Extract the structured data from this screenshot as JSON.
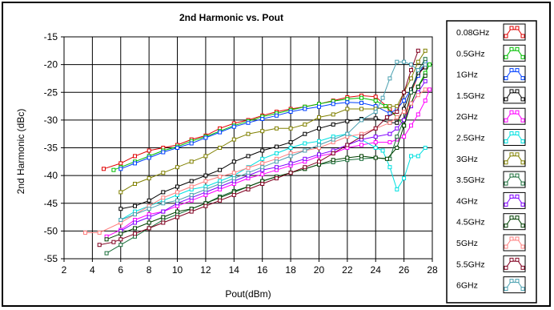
{
  "chart_data": {
    "type": "line",
    "title": "2nd Harmonic vs. Pout",
    "xlabel": "Pout(dBm)",
    "ylabel": "2nd Harmonic (dBc)",
    "xlim": [
      2,
      28
    ],
    "ylim": [
      -55,
      -15
    ],
    "xticks": [
      2,
      4,
      6,
      8,
      10,
      12,
      14,
      16,
      18,
      20,
      22,
      24,
      26,
      28
    ],
    "yticks": [
      -15,
      -20,
      -25,
      -30,
      -35,
      -40,
      -45,
      -50,
      -55
    ],
    "xtick_labels": [
      "2",
      "4",
      "6",
      "8",
      "10",
      "12",
      "14",
      "16",
      "18",
      "20",
      "22",
      "24",
      "26",
      "28"
    ],
    "ytick_labels": [
      "-15",
      "-20",
      "-25",
      "-30",
      "-35",
      "-40",
      "-45",
      "-50",
      "-55"
    ],
    "grid": true,
    "legend_position": "right",
    "marker": "open-square",
    "series": [
      {
        "name": "0.08GHz",
        "color": "#e00000",
        "x": [
          4.8,
          6,
          7,
          8,
          9,
          10,
          11,
          12,
          13,
          14,
          15,
          16,
          17,
          18,
          19,
          20,
          21,
          22,
          23,
          24,
          25,
          26,
          26.5,
          27,
          27.5
        ],
        "y": [
          -38.8,
          -37.8,
          -36.5,
          -35.5,
          -35,
          -34.5,
          -33.5,
          -32.8,
          -31.5,
          -30.6,
          -30,
          -29.2,
          -28.5,
          -28,
          -27.6,
          -27.1,
          -26.5,
          -25.9,
          -25.6,
          -25.8,
          -28,
          -31,
          -25,
          -22,
          -20
        ]
      },
      {
        "name": "0.5GHz",
        "color": "#00c000",
        "x": [
          5.5,
          6,
          7,
          8,
          9,
          10,
          11,
          12,
          13,
          14,
          15,
          16,
          17,
          18,
          19,
          20,
          21,
          22,
          23,
          24,
          24.7,
          25.5,
          26,
          26.5,
          27,
          27.5,
          27.8
        ],
        "y": [
          -39,
          -38.5,
          -37.5,
          -36.5,
          -35.5,
          -34.8,
          -33.8,
          -33,
          -32,
          -31,
          -30.2,
          -29.4,
          -28.8,
          -28.2,
          -27.6,
          -27.1,
          -26.6,
          -26.2,
          -26,
          -26.5,
          -27.5,
          -29.5,
          -31,
          -27,
          -24,
          -21.5,
          -20
        ]
      },
      {
        "name": "1GHz",
        "color": "#0040ff",
        "x": [
          6,
          7,
          8,
          9,
          10,
          11,
          12,
          13,
          14,
          15,
          16,
          17,
          18,
          19,
          20,
          21,
          22,
          23,
          24,
          25,
          25.5,
          26,
          26.5,
          27,
          27.5
        ],
        "y": [
          -38.8,
          -37.8,
          -36.8,
          -35.8,
          -35,
          -34.2,
          -33.2,
          -32.2,
          -31.2,
          -30.5,
          -29.8,
          -29.2,
          -28.5,
          -28,
          -27.6,
          -27.1,
          -26.8,
          -26.9,
          -27.5,
          -28.8,
          -28,
          -26.5,
          -24.5,
          -22,
          -19.5
        ]
      },
      {
        "name": "1.5GHz",
        "color": "#000000",
        "x": [
          6,
          7,
          8,
          9,
          10,
          11,
          12,
          13,
          14,
          15,
          16,
          17,
          18,
          19,
          20,
          21,
          22,
          23,
          24,
          25,
          25.5,
          26,
          26.5,
          27,
          27.5
        ],
        "y": [
          -46,
          -45.5,
          -44.5,
          -43,
          -42,
          -41,
          -40,
          -39,
          -37.5,
          -36.5,
          -35.5,
          -34.8,
          -34,
          -32.5,
          -31.5,
          -30.8,
          -30.2,
          -29.8,
          -29.7,
          -30.5,
          -30.5,
          -28,
          -24.5,
          -21.5,
          -20.5
        ]
      },
      {
        "name": "2GHz",
        "color": "#ff00ff",
        "x": [
          5,
          6,
          7,
          8,
          9,
          10,
          11,
          12,
          13,
          14,
          15,
          16,
          17,
          18,
          19,
          20,
          21,
          22,
          23,
          24,
          25,
          25.5,
          26,
          26.5,
          27,
          27.5,
          27.8
        ],
        "y": [
          -51,
          -49.8,
          -48,
          -47,
          -46.5,
          -45.5,
          -44.5,
          -43.5,
          -42.5,
          -41.5,
          -40.5,
          -39.8,
          -39,
          -38.2,
          -37.5,
          -36.5,
          -36,
          -35,
          -34.5,
          -34,
          -34,
          -33.5,
          -33,
          -31,
          -29,
          -26.5,
          -24.5
        ]
      },
      {
        "name": "2.5GHz",
        "color": "#00e0e0",
        "x": [
          6,
          7,
          8,
          9,
          10,
          11,
          12,
          13,
          14,
          15,
          16,
          17,
          18,
          19,
          20,
          21,
          22,
          23,
          24,
          24.5,
          25,
          25.5,
          26,
          26.5,
          27,
          27.5
        ],
        "y": [
          -48,
          -46.5,
          -45.5,
          -44.5,
          -43.5,
          -42.5,
          -42,
          -41,
          -40,
          -38.5,
          -37,
          -36,
          -35,
          -34.2,
          -33.8,
          -33,
          -32.5,
          -33.5,
          -35,
          -35.5,
          -38.5,
          -42.5,
          -40.5,
          -36.5,
          -36.5,
          -35
        ]
      },
      {
        "name": "3GHz",
        "color": "#808000",
        "x": [
          6,
          7,
          8,
          9,
          10,
          11,
          12,
          13,
          14,
          15,
          16,
          17,
          18,
          19,
          20,
          21,
          22,
          23,
          24,
          25,
          25.5,
          26,
          26.5,
          27,
          27.5
        ],
        "y": [
          -43,
          -41.5,
          -40.5,
          -39.5,
          -38.5,
          -37.5,
          -36.5,
          -35,
          -33.5,
          -32.5,
          -32,
          -31.5,
          -31.5,
          -30.8,
          -29.5,
          -29,
          -28,
          -28,
          -28,
          -27.5,
          -27.5,
          -25,
          -22.5,
          -19.5,
          -17.5
        ]
      },
      {
        "name": "3.5GHz",
        "color": "#1a6e3a",
        "x": [
          5,
          6,
          7,
          8,
          9,
          10,
          11,
          12,
          13,
          14,
          15,
          16,
          17,
          18,
          19,
          20,
          21,
          22,
          23,
          24,
          25,
          25.5,
          26,
          26.5,
          27,
          27.5
        ],
        "y": [
          -54,
          -52.5,
          -51,
          -49.5,
          -48,
          -47,
          -46,
          -45,
          -43.8,
          -42.8,
          -42,
          -41,
          -40.2,
          -39.5,
          -38.8,
          -38,
          -37.6,
          -37.2,
          -37,
          -36.8,
          -37,
          -33,
          -30,
          -25,
          -21,
          -19
        ]
      },
      {
        "name": "4GHz",
        "color": "#8000ff",
        "x": [
          6,
          7,
          8,
          9,
          10,
          11,
          12,
          13,
          14,
          15,
          16,
          17,
          18,
          19,
          20,
          21,
          22,
          23,
          24,
          25,
          25.5,
          26,
          26.5,
          27,
          27.5
        ],
        "y": [
          -50,
          -48.5,
          -47.5,
          -46.5,
          -45,
          -44,
          -43,
          -42,
          -41,
          -40,
          -39,
          -38.5,
          -37.8,
          -37,
          -36.2,
          -35.5,
          -34.5,
          -33.5,
          -33,
          -32.5,
          -31.5,
          -30,
          -27.5,
          -25,
          -23
        ]
      },
      {
        "name": "4.5GHz",
        "color": "#004000",
        "x": [
          5,
          6,
          7,
          8,
          9,
          10,
          11,
          12,
          13,
          14,
          15,
          16,
          17,
          18,
          19,
          20,
          21,
          22,
          23,
          24,
          24.8,
          25.5,
          26,
          26.5,
          27,
          27.5
        ],
        "y": [
          -51.5,
          -50.5,
          -49.5,
          -48.5,
          -47.5,
          -46.5,
          -46,
          -45,
          -44,
          -43,
          -42,
          -41,
          -40.2,
          -39.5,
          -38.8,
          -38,
          -37.2,
          -36.8,
          -36.5,
          -36.8,
          -37,
          -35,
          -31,
          -27,
          -24,
          -22
        ]
      },
      {
        "name": "5GHz",
        "color": "#ff8080",
        "x": [
          3.5,
          4.5,
          6,
          7,
          8,
          9,
          10,
          11,
          12,
          13,
          14,
          15,
          16,
          17,
          18,
          19,
          20,
          21,
          22,
          23,
          24,
          25,
          25.5,
          26,
          26.5,
          27,
          27.5
        ],
        "y": [
          -50.3,
          -50.3,
          -48.5,
          -47,
          -45.5,
          -44,
          -43,
          -42,
          -41,
          -40.2,
          -39.5,
          -38.6,
          -37.8,
          -37,
          -36,
          -35.5,
          -35,
          -34,
          -33,
          -32.5,
          -31.5,
          -30.5,
          -29.5,
          -28.5,
          -27,
          -25.5,
          -24.5
        ]
      },
      {
        "name": "5.5GHz",
        "color": "#800020",
        "x": [
          4.5,
          5.5,
          6,
          7,
          8,
          9,
          10,
          11,
          12,
          13,
          14,
          15,
          16,
          17,
          18,
          19,
          20,
          21,
          22,
          23,
          24,
          24.8,
          25.5,
          26,
          26.5,
          27
        ],
        "y": [
          -52.5,
          -52,
          -51.5,
          -50.5,
          -49.5,
          -48.5,
          -47.5,
          -46.5,
          -45.5,
          -44.5,
          -43.5,
          -42.5,
          -41.5,
          -40.5,
          -39.5,
          -38.5,
          -37.5,
          -36,
          -34.5,
          -33,
          -31.5,
          -29.5,
          -28.5,
          -25,
          -21,
          -17.5
        ]
      },
      {
        "name": "6GHz",
        "color": "#4aa0b0",
        "x": [
          6,
          7,
          8,
          9,
          10,
          11,
          12,
          13,
          14,
          15,
          16,
          17,
          18,
          19,
          20,
          21,
          22,
          23,
          24,
          24.5,
          25,
          25.5,
          26,
          26.5,
          27,
          27.5
        ],
        "y": [
          -48,
          -47,
          -46,
          -45,
          -44.5,
          -43.5,
          -42.5,
          -41.5,
          -40.5,
          -39.5,
          -38.5,
          -37.5,
          -36.5,
          -35.5,
          -34.5,
          -33.5,
          -32.5,
          -30,
          -28.5,
          -26,
          -22.5,
          -19.5,
          -19.5,
          -20,
          -21,
          -20
        ]
      }
    ]
  }
}
